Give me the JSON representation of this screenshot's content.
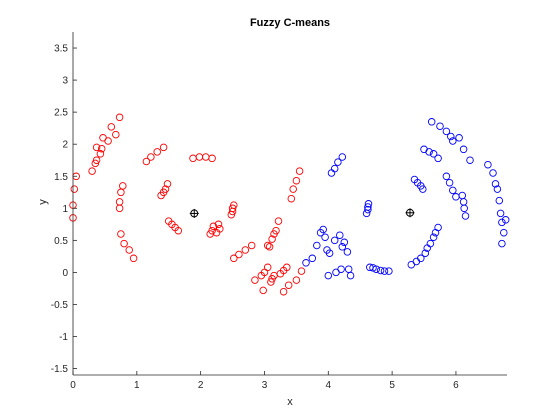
{
  "chart_data": {
    "type": "scatter",
    "title": "Fuzzy C-means",
    "xlabel": "x",
    "ylabel": "y",
    "xlim": [
      0,
      6.8
    ],
    "ylim": [
      -1.6,
      3.75
    ],
    "xticks": [
      "0",
      "1",
      "2",
      "3",
      "4",
      "5",
      "6"
    ],
    "yticks": [
      "-1.5",
      "-1",
      "-0.5",
      "0",
      "0.5",
      "1",
      "1.5",
      "2",
      "2.5",
      "3",
      "3.5"
    ],
    "grid": false,
    "legend": "none",
    "marker": "circle",
    "colors": {
      "cluster1": "#ff0000",
      "cluster2": "#0000ff",
      "center": "#000000"
    },
    "series": [
      {
        "color": "#ff0000",
        "points": [
          [
            0.0,
            0.85
          ],
          [
            0.0,
            1.05
          ],
          [
            0.02,
            1.3
          ],
          [
            0.05,
            1.5
          ],
          [
            0.3,
            1.58
          ],
          [
            0.35,
            1.7
          ],
          [
            0.37,
            1.75
          ],
          [
            0.37,
            1.95
          ],
          [
            0.43,
            1.85
          ],
          [
            0.45,
            1.93
          ],
          [
            0.47,
            2.1
          ],
          [
            0.55,
            2.05
          ],
          [
            0.6,
            2.27
          ],
          [
            0.67,
            2.15
          ],
          [
            0.73,
            2.42
          ],
          [
            0.73,
            1.0
          ],
          [
            0.73,
            1.1
          ],
          [
            0.75,
            1.25
          ],
          [
            0.78,
            1.35
          ],
          [
            0.75,
            0.6
          ],
          [
            0.8,
            0.45
          ],
          [
            0.88,
            0.35
          ],
          [
            0.95,
            0.22
          ],
          [
            1.15,
            1.73
          ],
          [
            1.22,
            1.8
          ],
          [
            1.32,
            1.88
          ],
          [
            1.42,
            1.95
          ],
          [
            1.38,
            1.2
          ],
          [
            1.42,
            1.25
          ],
          [
            1.45,
            1.3
          ],
          [
            1.48,
            1.38
          ],
          [
            1.5,
            0.8
          ],
          [
            1.55,
            0.75
          ],
          [
            1.6,
            0.7
          ],
          [
            1.65,
            0.65
          ],
          [
            1.88,
            1.78
          ],
          [
            1.98,
            1.8
          ],
          [
            2.08,
            1.8
          ],
          [
            2.18,
            1.78
          ],
          [
            2.15,
            0.6
          ],
          [
            2.18,
            0.65
          ],
          [
            2.2,
            0.72
          ],
          [
            2.25,
            0.62
          ],
          [
            2.28,
            0.75
          ],
          [
            2.3,
            0.68
          ],
          [
            2.48,
            0.9
          ],
          [
            2.5,
            0.95
          ],
          [
            2.5,
            1.0
          ],
          [
            2.52,
            1.05
          ],
          [
            2.52,
            0.22
          ],
          [
            2.6,
            0.28
          ],
          [
            2.7,
            0.35
          ],
          [
            2.8,
            0.42
          ],
          [
            2.85,
            -0.12
          ],
          [
            2.95,
            -0.05
          ],
          [
            2.98,
            -0.28
          ],
          [
            3.0,
            0.0
          ],
          [
            3.05,
            0.08
          ],
          [
            3.1,
            -0.15
          ],
          [
            3.12,
            -0.1
          ],
          [
            3.15,
            -0.05
          ],
          [
            3.05,
            0.42
          ],
          [
            3.08,
            0.4
          ],
          [
            3.12,
            0.52
          ],
          [
            3.15,
            0.6
          ],
          [
            3.18,
            0.65
          ],
          [
            3.22,
            0.8
          ],
          [
            3.25,
            -0.02
          ],
          [
            3.3,
            0.03
          ],
          [
            3.3,
            -0.3
          ],
          [
            3.35,
            0.08
          ],
          [
            3.38,
            -0.2
          ],
          [
            3.42,
            1.15
          ],
          [
            3.45,
            1.3
          ],
          [
            3.5,
            1.43
          ],
          [
            3.55,
            1.58
          ],
          [
            3.5,
            -0.12
          ],
          [
            3.58,
            0.02
          ]
        ]
      },
      {
        "color": "#0000ff",
        "points": [
          [
            3.65,
            0.15
          ],
          [
            3.75,
            0.22
          ],
          [
            3.82,
            0.42
          ],
          [
            3.88,
            0.62
          ],
          [
            3.92,
            0.67
          ],
          [
            3.95,
            0.55
          ],
          [
            3.98,
            0.35
          ],
          [
            4.02,
            0.3
          ],
          [
            4.0,
            -0.05
          ],
          [
            4.05,
            1.55
          ],
          [
            4.1,
            0.5
          ],
          [
            4.1,
            1.62
          ],
          [
            4.12,
            0.0
          ],
          [
            4.15,
            1.72
          ],
          [
            4.18,
            0.58
          ],
          [
            4.2,
            0.05
          ],
          [
            4.22,
            0.4
          ],
          [
            4.22,
            1.8
          ],
          [
            4.25,
            0.47
          ],
          [
            4.3,
            0.32
          ],
          [
            4.32,
            0.05
          ],
          [
            4.35,
            -0.05
          ],
          [
            4.6,
            0.92
          ],
          [
            4.62,
            0.98
          ],
          [
            4.62,
            1.02
          ],
          [
            4.63,
            1.07
          ],
          [
            4.65,
            0.08
          ],
          [
            4.7,
            0.07
          ],
          [
            4.75,
            0.05
          ],
          [
            4.82,
            0.03
          ],
          [
            4.88,
            0.02
          ],
          [
            4.95,
            0.02
          ],
          [
            5.3,
            0.12
          ],
          [
            5.38,
            0.17
          ],
          [
            5.45,
            0.22
          ],
          [
            5.52,
            0.3
          ],
          [
            5.35,
            1.45
          ],
          [
            5.4,
            1.4
          ],
          [
            5.45,
            1.35
          ],
          [
            5.48,
            1.3
          ],
          [
            5.55,
            0.38
          ],
          [
            5.6,
            0.45
          ],
          [
            5.65,
            0.55
          ],
          [
            5.68,
            0.62
          ],
          [
            5.72,
            0.7
          ],
          [
            5.5,
            1.92
          ],
          [
            5.58,
            1.88
          ],
          [
            5.65,
            1.85
          ],
          [
            5.72,
            1.78
          ],
          [
            5.62,
            2.35
          ],
          [
            5.75,
            2.28
          ],
          [
            5.85,
            2.2
          ],
          [
            5.92,
            2.12
          ],
          [
            5.95,
            2.05
          ],
          [
            5.85,
            1.5
          ],
          [
            5.9,
            1.4
          ],
          [
            5.95,
            1.28
          ],
          [
            6.0,
            1.18
          ],
          [
            6.05,
            2.1
          ],
          [
            6.1,
            1.2
          ],
          [
            6.12,
            1.1
          ],
          [
            6.13,
            1.0
          ],
          [
            6.15,
            0.88
          ],
          [
            6.12,
            1.92
          ],
          [
            6.22,
            1.75
          ],
          [
            6.5,
            1.68
          ],
          [
            6.58,
            1.55
          ],
          [
            6.62,
            1.38
          ],
          [
            6.65,
            1.3
          ],
          [
            6.68,
            1.12
          ],
          [
            6.7,
            0.92
          ],
          [
            6.72,
            0.78
          ],
          [
            6.75,
            0.62
          ],
          [
            6.72,
            0.45
          ],
          [
            6.78,
            0.82
          ]
        ]
      }
    ],
    "centers": [
      [
        1.9,
        0.92
      ],
      [
        5.28,
        0.93
      ]
    ]
  }
}
